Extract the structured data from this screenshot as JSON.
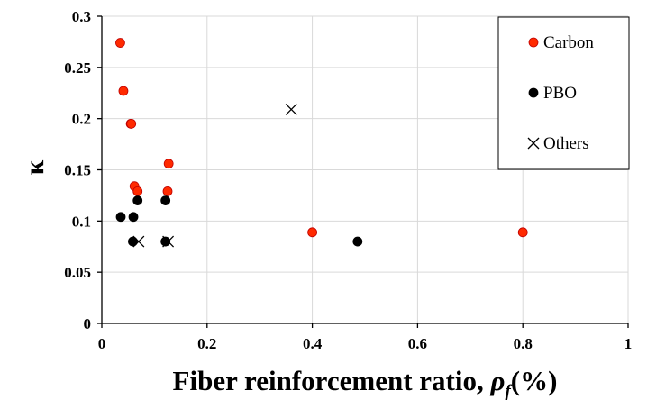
{
  "chart_data": {
    "type": "scatter",
    "title": "",
    "xlabel": "Fiber reinforcement ratio, ",
    "xlabel_symbol": "ρ",
    "xlabel_subscript": "f",
    "xlabel_unit": "(%)",
    "ylabel": "κ",
    "xlim": [
      0,
      1
    ],
    "ylim": [
      0,
      0.3
    ],
    "x_ticks": [
      "0",
      "0.2",
      "0.4",
      "0.6",
      "0.8",
      "1"
    ],
    "x_tick_values": [
      0,
      0.2,
      0.4,
      0.6,
      0.8,
      1
    ],
    "y_ticks": [
      "0",
      "0.05",
      "0.1",
      "0.15",
      "0.2",
      "0.25",
      "0.3"
    ],
    "y_tick_values": [
      0,
      0.05,
      0.1,
      0.15,
      0.2,
      0.25,
      0.3
    ],
    "grid": true,
    "legend_position": "top-right",
    "series": [
      {
        "name": "Carbon",
        "marker": "circle",
        "color": "#ff2a00",
        "edge_color": "#c00000",
        "points": [
          [
            0.035,
            0.274
          ],
          [
            0.041,
            0.227
          ],
          [
            0.055,
            0.195
          ],
          [
            0.056,
            0.195
          ],
          [
            0.062,
            0.134
          ],
          [
            0.068,
            0.129
          ],
          [
            0.127,
            0.156
          ],
          [
            0.125,
            0.129
          ],
          [
            0.4,
            0.089
          ],
          [
            0.8,
            0.089
          ]
        ]
      },
      {
        "name": "PBO",
        "marker": "circle",
        "color": "#000000",
        "edge_color": "#000000",
        "points": [
          [
            0.036,
            0.104
          ],
          [
            0.06,
            0.104
          ],
          [
            0.068,
            0.12
          ],
          [
            0.121,
            0.12
          ],
          [
            0.059,
            0.08
          ],
          [
            0.121,
            0.08
          ],
          [
            0.486,
            0.08
          ]
        ]
      },
      {
        "name": "Others",
        "marker": "x",
        "color": "#000000",
        "edge_color": "#000000",
        "points": [
          [
            0.36,
            0.209
          ],
          [
            0.07,
            0.08
          ],
          [
            0.126,
            0.08
          ]
        ]
      }
    ]
  }
}
